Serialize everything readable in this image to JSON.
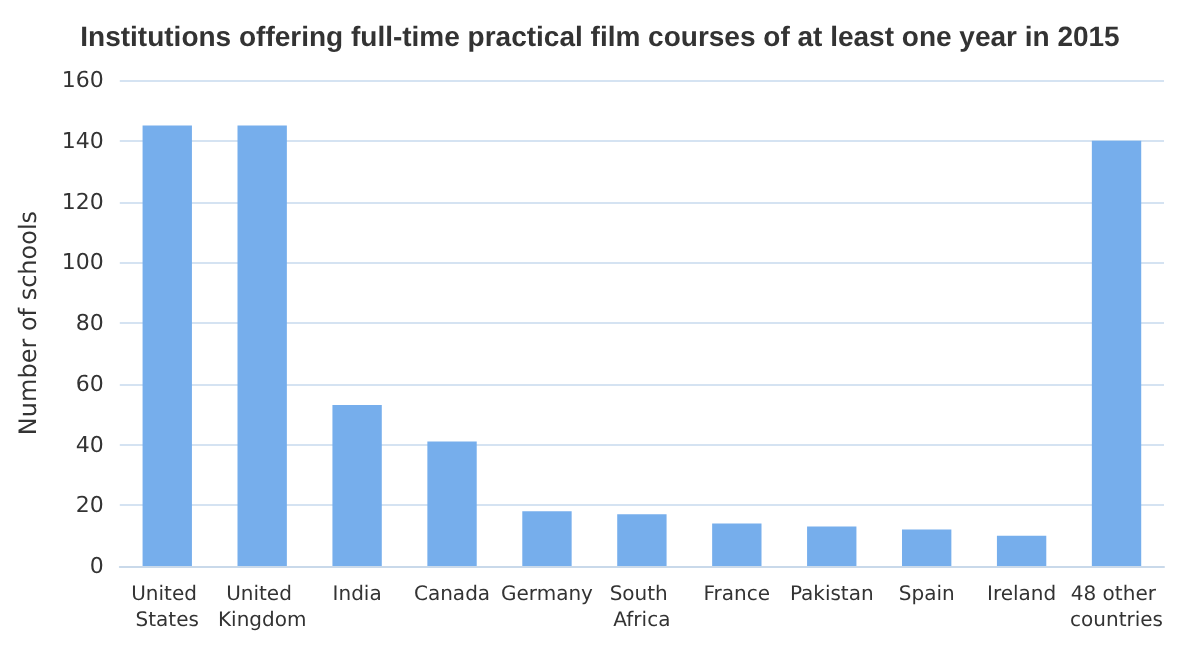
{
  "chart_data": {
    "type": "bar",
    "title": "Institutions offering full-time practical film courses of at least one year in 2015",
    "ylabel": "Number of schools",
    "categories": [
      "United States",
      "United Kingdom",
      "India",
      "Canada",
      "Germany",
      "South Africa",
      "France",
      "Pakistan",
      "Spain",
      "Ireland",
      "48 other countries"
    ],
    "values": [
      145,
      145,
      53,
      41,
      18,
      17,
      14,
      13,
      12,
      10,
      140
    ],
    "color": "#76aeec",
    "ylim": [
      0,
      160
    ],
    "yticks": [
      0,
      20,
      40,
      60,
      80,
      100,
      120,
      140,
      160
    ],
    "grid": "y"
  }
}
